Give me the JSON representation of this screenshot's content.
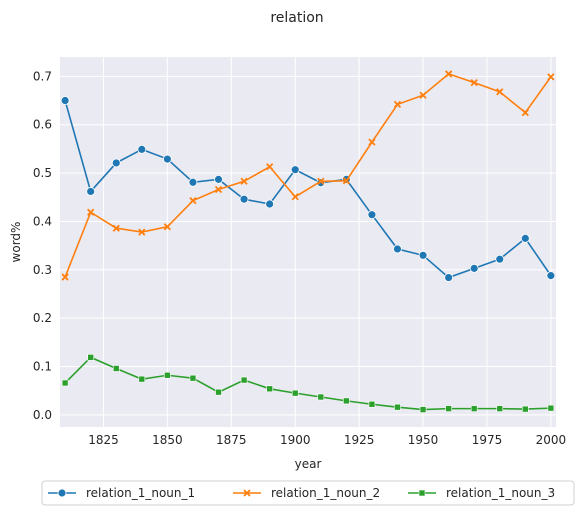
{
  "chart_data": {
    "type": "line",
    "title": "relation",
    "xlabel": "year",
    "ylabel": "word%",
    "x": [
      1810,
      1820,
      1830,
      1840,
      1850,
      1860,
      1870,
      1880,
      1890,
      1900,
      1910,
      1920,
      1930,
      1940,
      1950,
      1960,
      1970,
      1980,
      1990,
      2000
    ],
    "xlim": [
      1808,
      2002
    ],
    "ylim": [
      -0.025,
      0.74
    ],
    "xticks": [
      1825,
      1850,
      1875,
      1900,
      1925,
      1950,
      1975,
      2000
    ],
    "yticks": [
      0.0,
      0.1,
      0.2,
      0.3,
      0.4,
      0.5,
      0.6,
      0.7
    ],
    "grid": true,
    "legend_position": "bottom-center",
    "series": [
      {
        "name": "relation_1_noun_1",
        "color": "#1f77b4",
        "marker": "circle",
        "values": [
          0.65,
          0.462,
          0.521,
          0.549,
          0.529,
          0.481,
          0.487,
          0.446,
          0.436,
          0.507,
          0.48,
          0.487,
          0.414,
          0.343,
          0.33,
          0.284,
          0.303,
          0.322,
          0.365,
          0.288
        ]
      },
      {
        "name": "relation_1_noun_2",
        "color": "#ff7f0e",
        "marker": "x",
        "values": [
          0.285,
          0.419,
          0.386,
          0.378,
          0.389,
          0.443,
          0.466,
          0.483,
          0.513,
          0.451,
          0.483,
          0.484,
          0.564,
          0.642,
          0.661,
          0.705,
          0.687,
          0.668,
          0.625,
          0.699
        ]
      },
      {
        "name": "relation_1_noun_3",
        "color": "#2ca02c",
        "marker": "square",
        "values": [
          0.066,
          0.119,
          0.096,
          0.074,
          0.082,
          0.076,
          0.047,
          0.072,
          0.054,
          0.045,
          0.037,
          0.029,
          0.022,
          0.016,
          0.011,
          0.013,
          0.013,
          0.013,
          0.012,
          0.014
        ]
      }
    ]
  }
}
